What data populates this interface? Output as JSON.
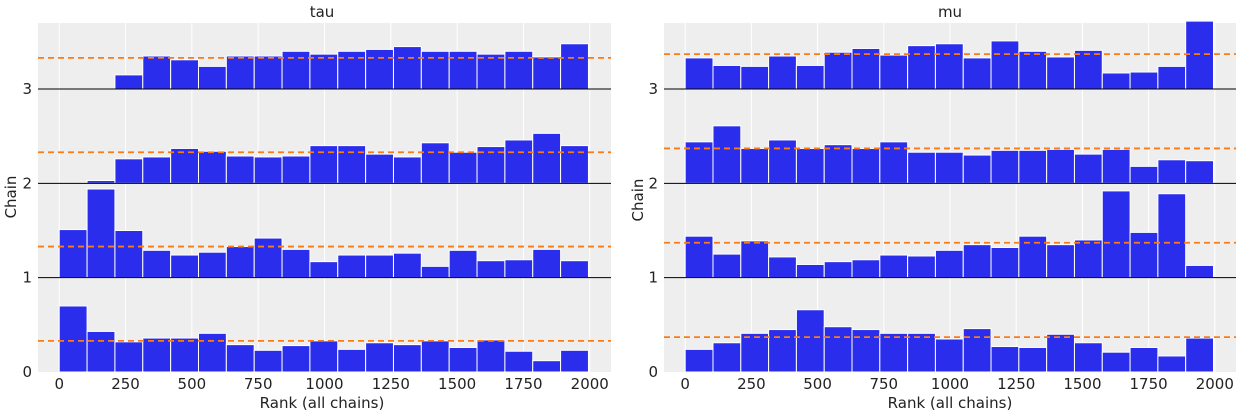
{
  "chart_data": [
    {
      "type": "bar",
      "title": "tau",
      "xlabel": "Rank (all chains)",
      "ylabel": "Chain",
      "xlim": [
        -80,
        2080
      ],
      "ylim": [
        0,
        3.7
      ],
      "xticks": [
        0,
        250,
        500,
        750,
        1000,
        1250,
        1500,
        1750,
        2000
      ],
      "yticks": [
        0,
        1,
        2,
        3
      ],
      "bin_width": 105,
      "bin_starts": [
        0,
        105,
        210,
        315,
        420,
        525,
        630,
        735,
        840,
        945,
        1050,
        1155,
        1260,
        1365,
        1470,
        1575,
        1680,
        1785,
        1890
      ],
      "reference_line_height": 0.33,
      "chains": [
        {
          "name": "0",
          "values": [
            0.7,
            0.43,
            0.32,
            0.36,
            0.36,
            0.41,
            0.29,
            0.23,
            0.28,
            0.33,
            0.24,
            0.31,
            0.29,
            0.33,
            0.26,
            0.34,
            0.22,
            0.12,
            0.23
          ]
        },
        {
          "name": "1",
          "values": [
            0.51,
            0.94,
            0.5,
            0.29,
            0.24,
            0.27,
            0.33,
            0.42,
            0.3,
            0.17,
            0.24,
            0.24,
            0.26,
            0.12,
            0.29,
            0.18,
            0.19,
            0.3,
            0.18
          ]
        },
        {
          "name": "2",
          "values": [
            0.0,
            0.03,
            0.26,
            0.28,
            0.37,
            0.34,
            0.29,
            0.28,
            0.29,
            0.4,
            0.4,
            0.31,
            0.28,
            0.43,
            0.33,
            0.39,
            0.46,
            0.53,
            0.4
          ]
        },
        {
          "name": "3",
          "values": [
            0.0,
            0.0,
            0.15,
            0.35,
            0.31,
            0.24,
            0.35,
            0.35,
            0.4,
            0.37,
            0.4,
            0.42,
            0.45,
            0.4,
            0.4,
            0.37,
            0.4,
            0.34,
            0.48
          ]
        }
      ]
    },
    {
      "type": "bar",
      "title": "mu",
      "xlabel": "Rank (all chains)",
      "ylabel": "Chain",
      "xlim": [
        -80,
        2080
      ],
      "ylim": [
        0,
        3.7
      ],
      "xticks": [
        0,
        250,
        500,
        750,
        1000,
        1250,
        1500,
        1750,
        2000
      ],
      "yticks": [
        0,
        1,
        2,
        3
      ],
      "bin_width": 105,
      "bin_starts": [
        0,
        105,
        210,
        315,
        420,
        525,
        630,
        735,
        840,
        945,
        1050,
        1155,
        1260,
        1365,
        1470,
        1575,
        1680,
        1785,
        1890
      ],
      "reference_line_height": 0.37,
      "chains": [
        {
          "name": "0",
          "values": [
            0.24,
            0.31,
            0.41,
            0.45,
            0.66,
            0.48,
            0.45,
            0.41,
            0.41,
            0.35,
            0.46,
            0.27,
            0.26,
            0.4,
            0.31,
            0.21,
            0.26,
            0.17,
            0.36
          ]
        },
        {
          "name": "1",
          "values": [
            0.44,
            0.25,
            0.39,
            0.22,
            0.14,
            0.17,
            0.19,
            0.24,
            0.23,
            0.29,
            0.35,
            0.32,
            0.44,
            0.35,
            0.4,
            0.92,
            0.48,
            0.89,
            0.13
          ]
        },
        {
          "name": "2",
          "values": [
            0.44,
            0.61,
            0.37,
            0.46,
            0.37,
            0.41,
            0.37,
            0.44,
            0.33,
            0.33,
            0.3,
            0.35,
            0.35,
            0.36,
            0.31,
            0.36,
            0.18,
            0.25,
            0.24
          ]
        },
        {
          "name": "3",
          "values": [
            0.33,
            0.25,
            0.24,
            0.35,
            0.25,
            0.39,
            0.43,
            0.36,
            0.46,
            0.48,
            0.33,
            0.51,
            0.4,
            0.34,
            0.41,
            0.17,
            0.18,
            0.24,
            0.72
          ]
        }
      ]
    }
  ],
  "colors": {
    "bar": "#2a2eec",
    "reference_line": "#fa7c17",
    "background": "#eeeeee",
    "grid": "#ffffff",
    "baseline": "#000000"
  }
}
